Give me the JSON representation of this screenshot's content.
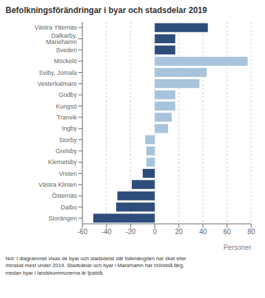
{
  "chart_data": {
    "type": "bar",
    "orientation": "horizontal",
    "title": "Befolkningsförändringar i byar och stadsdelar 2019",
    "categories": [
      "Västra Ytternäs",
      "Dalkarby, Mariehamn",
      "Sveden",
      "Möckelö",
      "Sviby, Jomala",
      "Vesterkalmare",
      "Godby",
      "Kungsö",
      "Tranvik",
      "Ingby",
      "Storby",
      "Grelsby",
      "Klemetsby",
      "Vreten",
      "Västra Klinten",
      "Östernäs",
      "Dalbo",
      "Storängen"
    ],
    "values": [
      44,
      17,
      17,
      77,
      43,
      37,
      17,
      17,
      14,
      11,
      -8,
      -7,
      -7,
      -10,
      -19,
      -31,
      -32,
      -51
    ],
    "colors": [
      "#2E4D7B",
      "#2E4D7B",
      "#2E4D7B",
      "#A8C4DC",
      "#A8C4DC",
      "#A8C4DC",
      "#A8C4DC",
      "#A8C4DC",
      "#A8C4DC",
      "#A8C4DC",
      "#A8C4DC",
      "#A8C4DC",
      "#A8C4DC",
      "#2E4D7B",
      "#2E4D7B",
      "#2E4D7B",
      "#2E4D7B",
      "#2E4D7B"
    ],
    "xlim": [
      -60,
      80
    ],
    "xticks": [
      -60,
      -40,
      -20,
      0,
      20,
      40,
      60,
      80
    ],
    "xlabel": "Personer",
    "annotations": [
      "Not: I diagrammet visas de byar och stadsdelar där folkmängden har ökat eller\nminskat mest under 2019. Stadsdelar och byar i Mariehamn har mörkblå färg,\nmedan byar i landskommunerna är ljusblå."
    ],
    "grid": true
  }
}
